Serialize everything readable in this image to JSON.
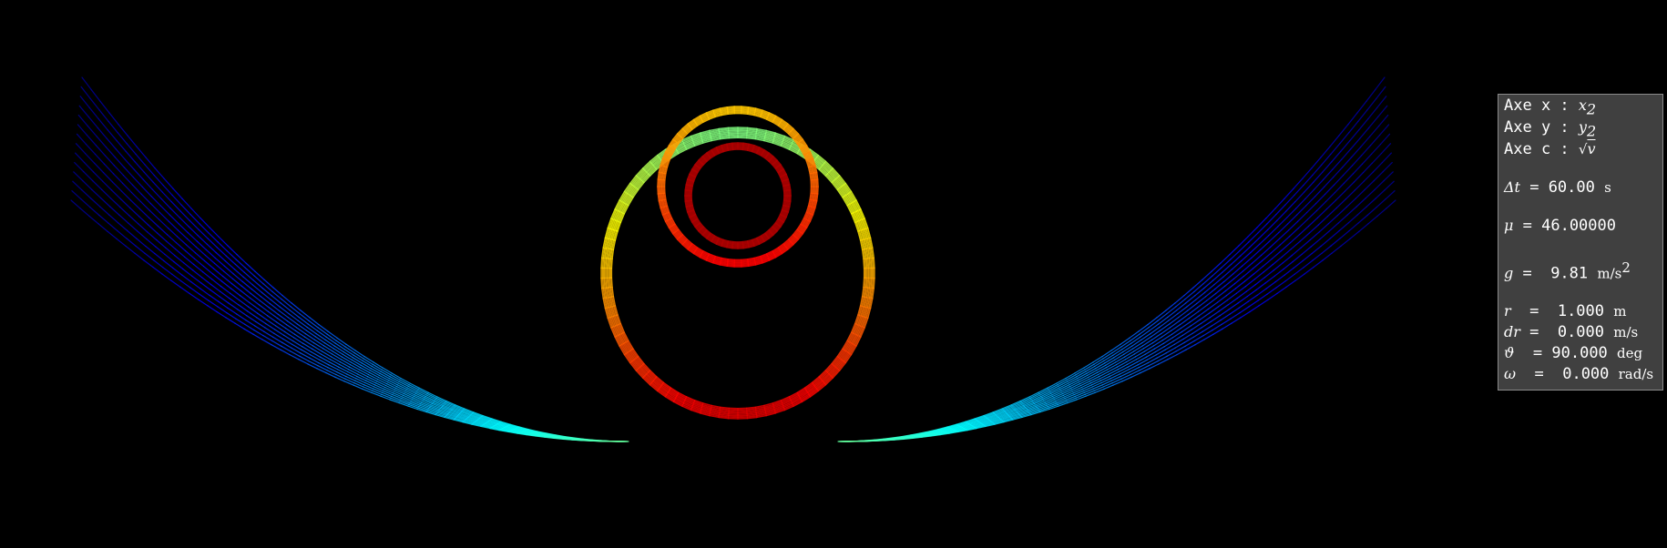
{
  "background": "#000000",
  "colormap": [
    "#00008f",
    "#0000ff",
    "#0080ff",
    "#00ffff",
    "#80ff80",
    "#ffff00",
    "#ff8000",
    "#ff0000",
    "#800000"
  ],
  "panel": {
    "axe_x_label": "Axe x : ",
    "axe_x_var": "x",
    "axe_x_sub": "2",
    "axe_y_label": "Axe y : ",
    "axe_y_var": "y",
    "axe_y_sub": "2",
    "axe_c_label": "Axe c : ",
    "axe_c_sqrt": "√",
    "axe_c_var": "v",
    "dt_symbol": "Δt",
    "dt_value": " = 60.00 ",
    "dt_unit": "s",
    "mu_symbol": "μ",
    "mu_value": " = 46.00000",
    "g_symbol": "g",
    "g_value": " =  9.81 ",
    "g_unit": "m/s",
    "g_unit_sup": "2",
    "r_symbol": "r",
    "r_value": "  =  1.000 ",
    "r_unit": "m",
    "dr_symbol": "dr",
    "dr_value": " =  0.000 ",
    "dr_unit": "m/s",
    "theta_symbol": "ϑ",
    "theta_value": "  = 90.000 ",
    "theta_unit": "deg",
    "omega_symbol": "ω",
    "omega_value": "  =  0.000 ",
    "omega_unit": "rad/s"
  }
}
